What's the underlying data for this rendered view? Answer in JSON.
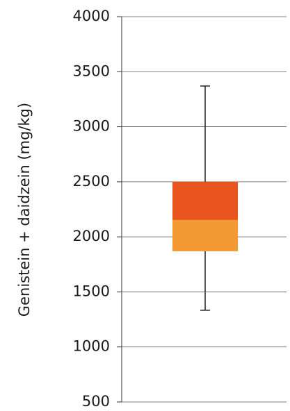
{
  "chart_data": {
    "type": "box",
    "ylabel": "Genistein + daidzein (mg/kg)",
    "ylim": [
      500,
      4000
    ],
    "yticks": [
      500,
      1000,
      1500,
      2000,
      2500,
      3000,
      3500,
      4000
    ],
    "grid": true,
    "box": {
      "whislo": 1333,
      "q1": 1869,
      "med": 2153,
      "q3": 2500,
      "whishi": 3370
    },
    "lower_color": "#f39a34",
    "upper_color": "#e8541e"
  }
}
